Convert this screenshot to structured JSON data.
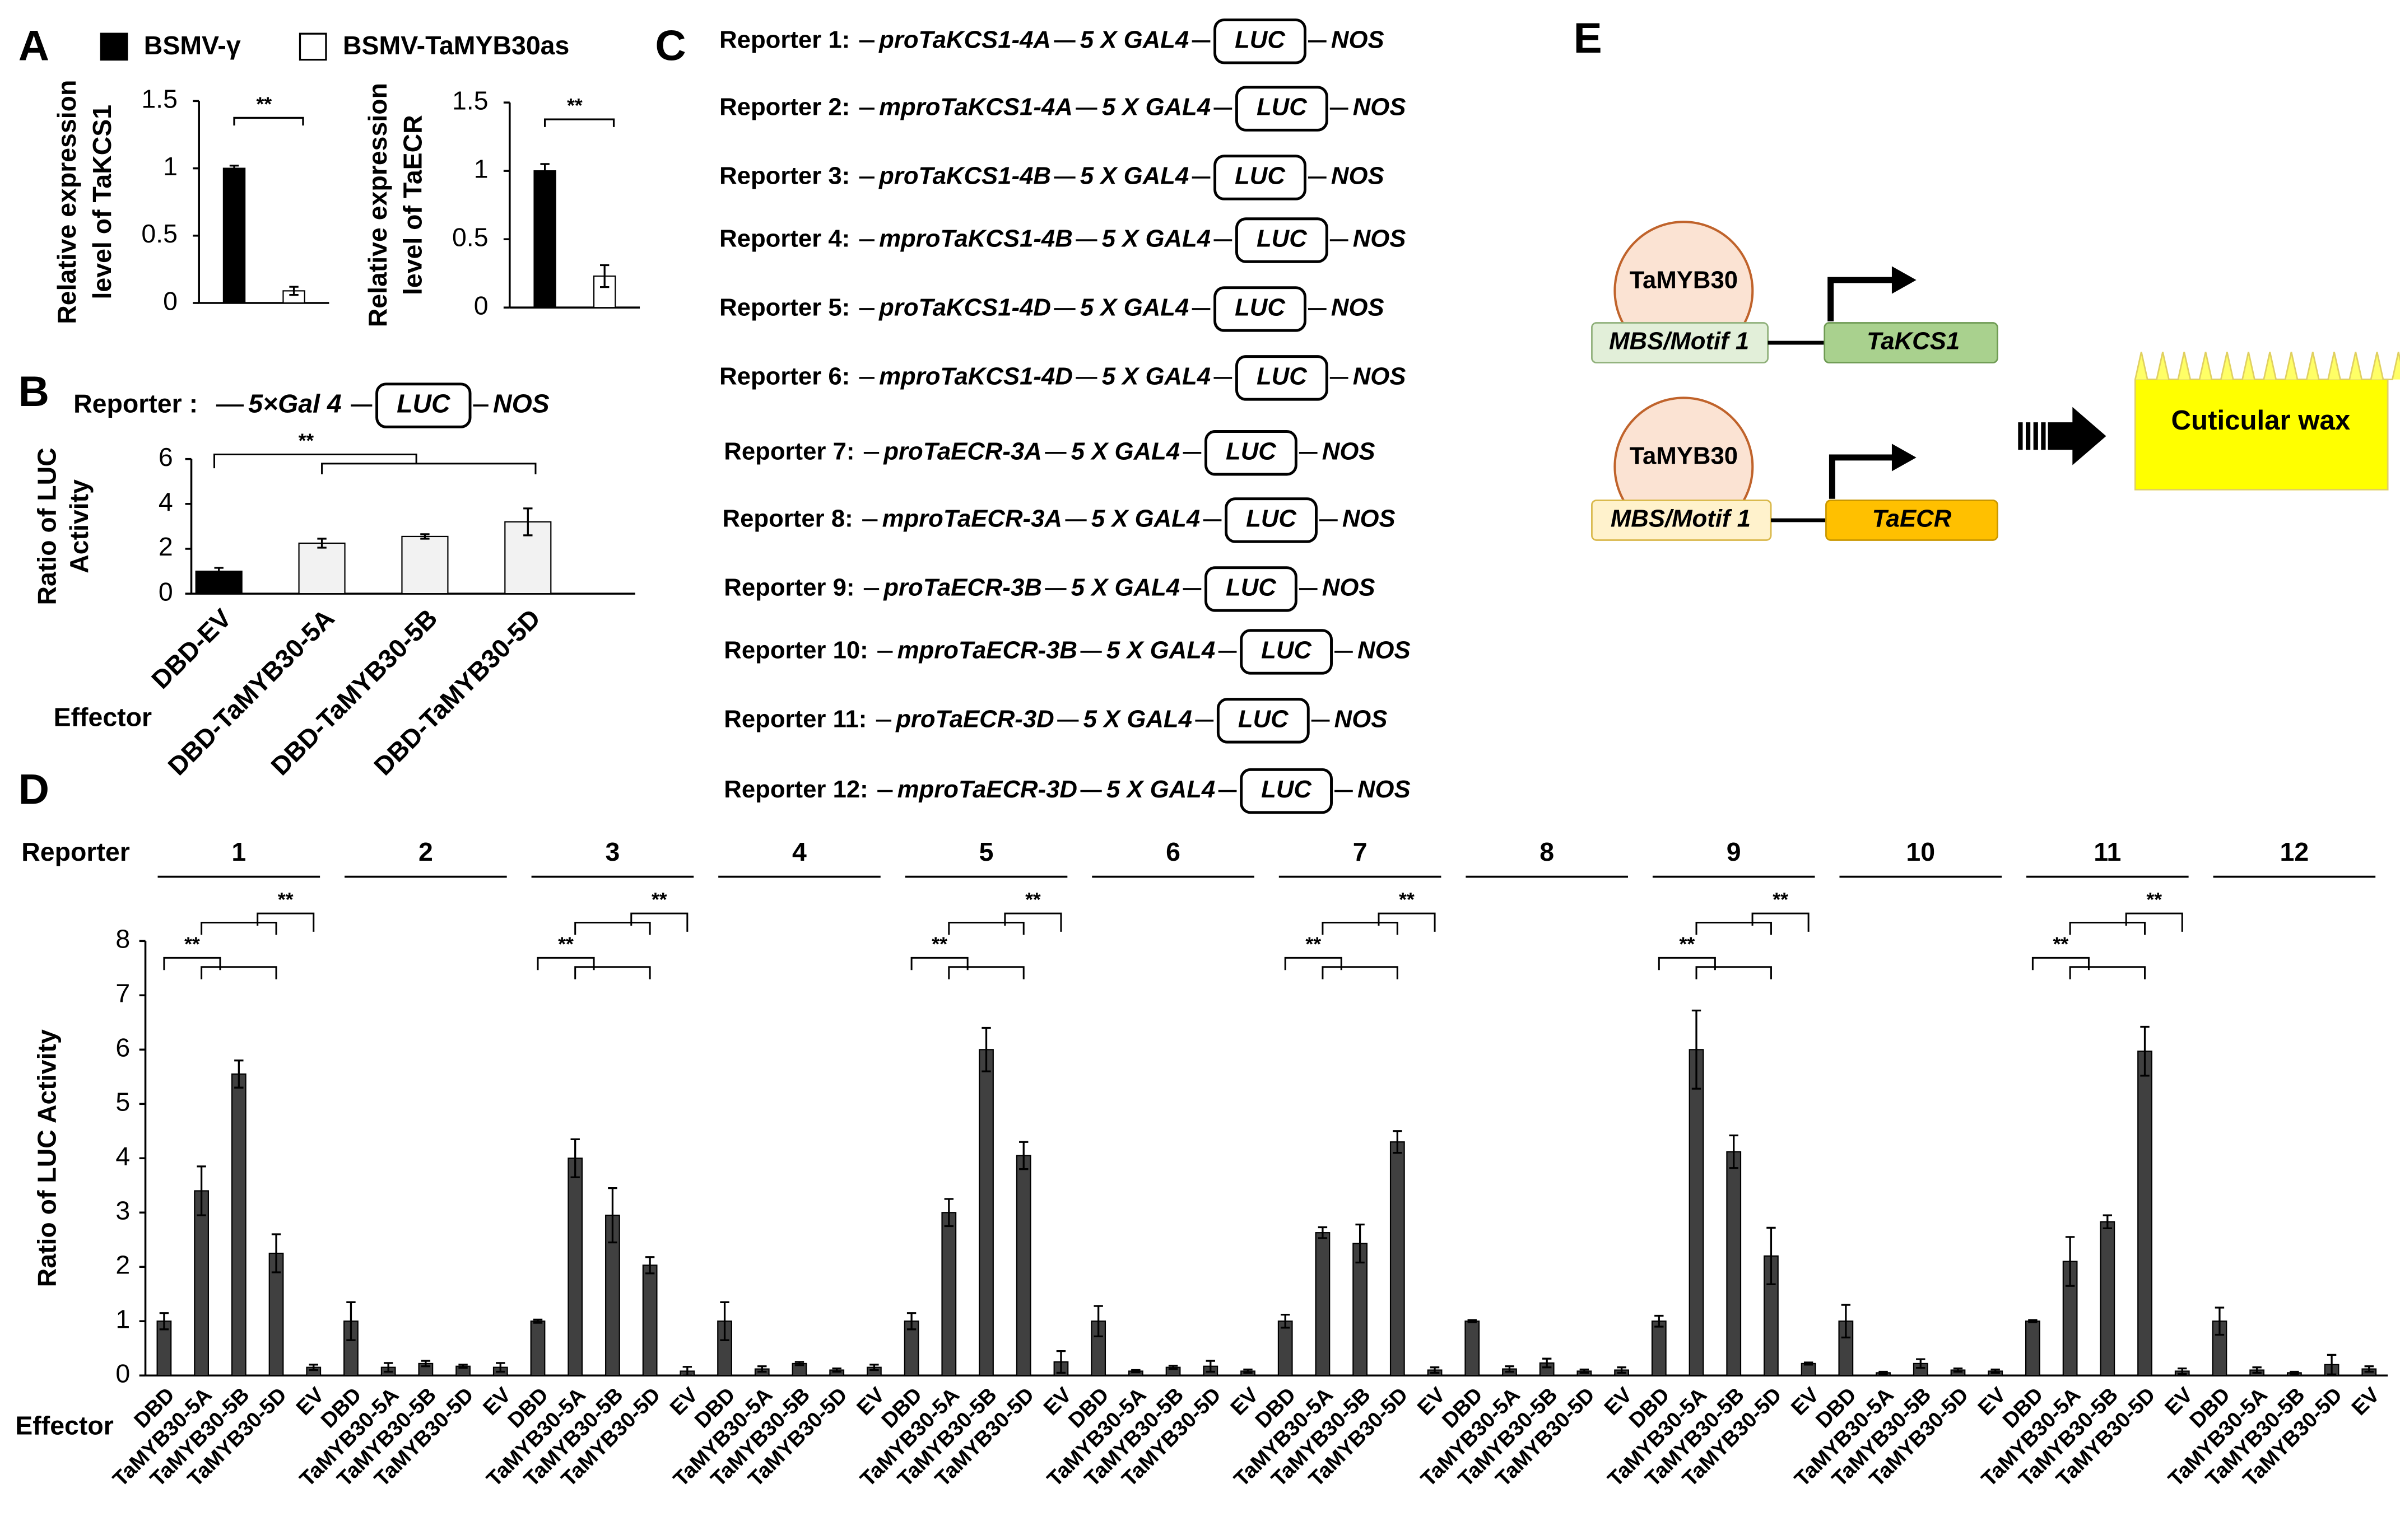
{
  "panel_labels": [
    "A",
    "B",
    "C",
    "D",
    "E"
  ],
  "chart_data": [
    {
      "type": "bar",
      "ylabel": [
        "Relative expression",
        "level of TaKCS1"
      ],
      "series": [
        {
          "name": "BSMV-γ",
          "color": "#000000",
          "values": [
            1
          ],
          "errors": [
            0.02
          ]
        },
        {
          "name": "BSMV-TaMYB30as",
          "color": "#ffffff",
          "values": [
            0.09
          ],
          "errors": [
            0.03
          ]
        }
      ],
      "ylim": [
        0,
        1.5
      ],
      "yticks": [
        0,
        0.5,
        1,
        1.5
      ],
      "significance": "**"
    },
    {
      "type": "bar",
      "ylabel": [
        "Relative expression",
        "level of TaECR"
      ],
      "series": [
        {
          "color": "#000000",
          "values": [
            1
          ],
          "errors": [
            0.05
          ]
        },
        {
          "color": "#ffffff",
          "values": [
            0.23
          ],
          "errors": [
            0.08
          ]
        }
      ],
      "ylim": [
        0,
        1.5
      ],
      "yticks": [
        0,
        0.5,
        1,
        1.5
      ],
      "significance": "**"
    },
    {
      "type": "bar",
      "reporter": {
        "label": "Reporter :",
        "gal4": "5×Gal 4",
        "luc": "LUC",
        "terminator": "NOS"
      },
      "ylabel": [
        "Ratio of LUC",
        "Activity"
      ],
      "xlabel": "Effector",
      "categories": [
        "DBD-EV",
        "DBD-TaMYB30-5A",
        "DBD-TaMYB30-5B",
        "DBD-TaMYB30-5D"
      ],
      "values": [
        1,
        2.25,
        2.55,
        3.2
      ],
      "errors": [
        0.15,
        0.2,
        0.1,
        0.6
      ],
      "colors": [
        "#000000",
        "#f2f2f2",
        "#f2f2f2",
        "#f2f2f2"
      ],
      "ylim": [
        0,
        6
      ],
      "yticks": [
        0,
        2,
        4,
        6
      ],
      "significance": "**"
    },
    {
      "type": "bar",
      "group_title": "Reporter",
      "ylabel": "Ratio of LUC Activity",
      "xlabel": "Effector",
      "groups": [
        {
          "label": "1",
          "significance": [
            "**",
            "**"
          ]
        },
        {
          "label": "2",
          "significance": []
        },
        {
          "label": "3",
          "significance": [
            "**",
            "**"
          ]
        },
        {
          "label": "4",
          "significance": []
        },
        {
          "label": "5",
          "significance": [
            "**",
            "**"
          ]
        },
        {
          "label": "6",
          "significance": []
        },
        {
          "label": "7",
          "significance": [
            "**",
            "**"
          ]
        },
        {
          "label": "8",
          "significance": []
        },
        {
          "label": "9",
          "significance": [
            "**",
            "**"
          ]
        },
        {
          "label": "10",
          "significance": []
        },
        {
          "label": "11",
          "significance": [
            "**",
            "**"
          ]
        },
        {
          "label": "12",
          "significance": []
        }
      ],
      "categories": [
        "DBD",
        "TaMYB30-5A",
        "TaMYB30-5B",
        "TaMYB30-5D",
        "EV",
        "DBD",
        "TaMYB30-5A",
        "TaMYB30-5B",
        "TaMYB30-5D",
        "EV",
        "DBD",
        "TaMYB30-5A",
        "TaMYB30-5B",
        "TaMYB30-5D",
        "EV",
        "DBD",
        "TaMYB30-5A",
        "TaMYB30-5B",
        "TaMYB30-5D",
        "EV",
        "DBD",
        "TaMYB30-5A",
        "TaMYB30-5B",
        "TaMYB30-5D",
        "EV",
        "DBD",
        "TaMYB30-5A",
        "TaMYB30-5B",
        "TaMYB30-5D",
        "EV",
        "DBD",
        "TaMYB30-5A",
        "TaMYB30-5B",
        "TaMYB30-5D",
        "EV",
        "DBD",
        "TaMYB30-5A",
        "TaMYB30-5B",
        "TaMYB30-5D",
        "EV",
        "DBD",
        "TaMYB30-5A",
        "TaMYB30-5B",
        "TaMYB30-5D",
        "EV",
        "DBD",
        "TaMYB30-5A",
        "TaMYB30-5B",
        "TaMYB30-5D",
        "EV",
        "DBD",
        "TaMYB30-5A",
        "TaMYB30-5B",
        "TaMYB30-5D",
        "EV",
        "DBD",
        "TaMYB30-5A",
        "TaMYB30-5B",
        "TaMYB30-5D",
        "EV"
      ],
      "values": [
        1,
        3.4,
        5.55,
        2.25,
        0.15,
        1,
        0.15,
        0.22,
        0.17,
        0.15,
        1,
        4,
        2.95,
        2.03,
        0.08,
        1,
        0.12,
        0.22,
        0.1,
        0.15,
        1,
        3,
        6,
        4.05,
        0.25,
        1,
        0.08,
        0.15,
        0.17,
        0.08,
        1,
        2.63,
        2.43,
        4.3,
        0.1,
        1,
        0.12,
        0.23,
        0.08,
        0.1,
        1,
        6,
        4.12,
        2.2,
        0.22,
        1,
        0.05,
        0.22,
        0.1,
        0.08,
        1,
        2.1,
        2.83,
        5.97,
        0.08,
        1,
        0.1,
        0.05,
        0.2,
        0.12
      ],
      "errors": [
        0.15,
        0.45,
        0.25,
        0.35,
        0.05,
        0.35,
        0.08,
        0.05,
        0.03,
        0.08,
        0.03,
        0.35,
        0.5,
        0.15,
        0.08,
        0.35,
        0.05,
        0.03,
        0.03,
        0.05,
        0.15,
        0.25,
        0.4,
        0.25,
        0.2,
        0.28,
        0.02,
        0.03,
        0.1,
        0.03,
        0.12,
        0.1,
        0.35,
        0.2,
        0.05,
        0.02,
        0.05,
        0.08,
        0.03,
        0.05,
        0.1,
        0.72,
        0.3,
        0.52,
        0.02,
        0.3,
        0.02,
        0.08,
        0.03,
        0.03,
        0.02,
        0.45,
        0.12,
        0.45,
        0.05,
        0.25,
        0.05,
        0.02,
        0.18,
        0.05
      ],
      "color": "#404040",
      "ylim": [
        0,
        8
      ],
      "yticks": [
        0,
        1,
        2,
        3,
        4,
        5,
        6,
        7,
        8
      ]
    }
  ],
  "reporters": [
    {
      "label": "Reporter 1:",
      "promoter": "proTaKCS1-4A",
      "gal4": "5 X GAL4",
      "luc": "LUC",
      "terminator": "NOS"
    },
    {
      "label": "Reporter 2:",
      "promoter": "mproTaKCS1-4A",
      "gal4": "5 X GAL4",
      "luc": "LUC",
      "terminator": "NOS"
    },
    {
      "label": "Reporter 3:",
      "promoter": "proTaKCS1-4B",
      "gal4": "5 X GAL4",
      "luc": "LUC",
      "terminator": "NOS"
    },
    {
      "label": "Reporter 4:",
      "promoter": "mproTaKCS1-4B",
      "gal4": "5 X GAL4",
      "luc": "LUC",
      "terminator": "NOS"
    },
    {
      "label": "Reporter 5:",
      "promoter": "proTaKCS1-4D",
      "gal4": "5 X GAL4",
      "luc": "LUC",
      "terminator": "NOS"
    },
    {
      "label": "Reporter 6:",
      "promoter": "mproTaKCS1-4D",
      "gal4": "5 X GAL4",
      "luc": "LUC",
      "terminator": "NOS"
    },
    {
      "label": "Reporter 7:",
      "promoter": "proTaECR-3A",
      "gal4": "5 X GAL4",
      "luc": "LUC",
      "terminator": "NOS"
    },
    {
      "label": "Reporter 8:",
      "promoter": "mproTaECR-3A",
      "gal4": "5 X GAL4",
      "luc": "LUC",
      "terminator": "NOS"
    },
    {
      "label": "Reporter 9:",
      "promoter": "proTaECR-3B",
      "gal4": "5 X GAL4",
      "luc": "LUC",
      "terminator": "NOS"
    },
    {
      "label": "Reporter 10:",
      "promoter": "mproTaECR-3B",
      "gal4": "5 X GAL4",
      "luc": "LUC",
      "terminator": "NOS"
    },
    {
      "label": "Reporter 11:",
      "promoter": "proTaECR-3D",
      "gal4": "5 X GAL4",
      "luc": "LUC",
      "terminator": "NOS"
    },
    {
      "label": "Reporter 12:",
      "promoter": "mproTaECR-3D",
      "gal4": "5 X GAL4",
      "luc": "LUC",
      "terminator": "NOS"
    }
  ],
  "model": {
    "factor_1": "TaMYB30",
    "motif_1": "MBS/Motif 1",
    "gene_1": "TaKCS1",
    "factor_2": "TaMYB30",
    "motif_2": "MBS/Motif 1",
    "gene_2": "TaECR",
    "output": "Cuticular wax"
  }
}
